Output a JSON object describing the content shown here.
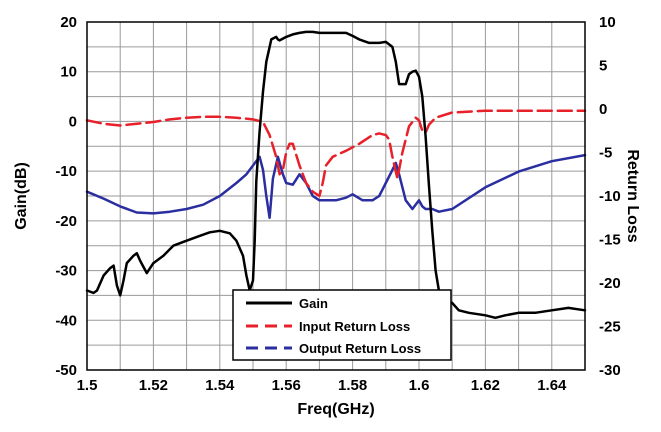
{
  "chart_data": {
    "type": "line",
    "title": "",
    "xlabel": "Freq(GHz)",
    "ylabel": "Gain(dB)",
    "ylabel_right": "Return Loss",
    "xlim": [
      1.5,
      1.65
    ],
    "ylim": [
      -50,
      20
    ],
    "ylim_right": [
      -30,
      10
    ],
    "x_ticks": [
      "1.5",
      "1.52",
      "1.54",
      "1.56",
      "1.58",
      "1.6",
      "1.62",
      "1.64"
    ],
    "y_ticks": [
      "20",
      "10",
      "0",
      "-10",
      "-20",
      "-30",
      "-40",
      "-50"
    ],
    "y_ticks_right": [
      "10",
      "5",
      "0",
      "-5",
      "-10",
      "-15",
      "-20",
      "-25",
      "-30"
    ],
    "grid": true,
    "legend_position": "bottom-center",
    "series": [
      {
        "name": "Gain",
        "axis": "left",
        "color": "#000000",
        "dash": "solid",
        "x": [
          1.5,
          1.502,
          1.503,
          1.505,
          1.507,
          1.508,
          1.509,
          1.51,
          1.511,
          1.512,
          1.514,
          1.515,
          1.516,
          1.518,
          1.52,
          1.523,
          1.526,
          1.53,
          1.534,
          1.537,
          1.54,
          1.543,
          1.545,
          1.547,
          1.548,
          1.549,
          1.55,
          1.5505,
          1.551,
          1.552,
          1.553,
          1.554,
          1.5555,
          1.557,
          1.5575,
          1.558,
          1.56,
          1.562,
          1.564,
          1.566,
          1.568,
          1.57,
          1.575,
          1.578,
          1.58,
          1.582,
          1.585,
          1.588,
          1.59,
          1.592,
          1.593,
          1.594,
          1.596,
          1.597,
          1.598,
          1.599,
          1.6,
          1.601,
          1.602,
          1.603,
          1.604,
          1.605,
          1.606,
          1.607,
          1.608,
          1.61,
          1.612,
          1.615,
          1.62,
          1.623,
          1.626,
          1.63,
          1.635,
          1.64,
          1.645,
          1.65
        ],
        "y": [
          -34,
          -34.5,
          -34,
          -31,
          -29.5,
          -29,
          -33,
          -35,
          -32,
          -28.5,
          -27,
          -26.5,
          -28,
          -30.5,
          -28.5,
          -27,
          -25,
          -24,
          -23,
          -22.3,
          -22,
          -22.5,
          -24,
          -27,
          -31,
          -34,
          -32,
          -24,
          -12,
          -2,
          6,
          12,
          16.5,
          17,
          16.5,
          16.3,
          17,
          17.5,
          17.8,
          18,
          18,
          17.8,
          17.8,
          17.8,
          17.2,
          16.5,
          15.8,
          15.8,
          16,
          15,
          12,
          7.5,
          7.5,
          9.5,
          10,
          10.2,
          9,
          5,
          -3,
          -13,
          -22,
          -30,
          -34,
          -35.5,
          -36,
          -36.5,
          -38,
          -38.5,
          -39,
          -39.5,
          -39,
          -38.5,
          -38.5,
          -38,
          -37.5,
          -38
        ]
      },
      {
        "name": "Input Return Loss",
        "axis": "right",
        "color": "#e8202a",
        "dash": "dashed",
        "x": [
          1.5,
          1.505,
          1.51,
          1.515,
          1.52,
          1.525,
          1.53,
          1.535,
          1.54,
          1.545,
          1.55,
          1.553,
          1.555,
          1.557,
          1.558,
          1.559,
          1.5595,
          1.56,
          1.561,
          1.562,
          1.564,
          1.566,
          1.568,
          1.57,
          1.571,
          1.572,
          1.574,
          1.578,
          1.582,
          1.586,
          1.588,
          1.59,
          1.591,
          1.592,
          1.5935,
          1.595,
          1.597,
          1.599,
          1.6,
          1.601,
          1.602,
          1.603,
          1.605,
          1.61,
          1.62,
          1.63,
          1.64,
          1.65
        ],
        "y": [
          -1.3,
          -1.7,
          -1.9,
          -1.7,
          -1.5,
          -1.2,
          -1,
          -0.9,
          -0.9,
          -1,
          -1.2,
          -1.5,
          -3,
          -5.5,
          -7.5,
          -7,
          -6,
          -5,
          -4,
          -4,
          -6.5,
          -8.5,
          -9.5,
          -10,
          -8.5,
          -6.5,
          -5.5,
          -4.8,
          -4,
          -3,
          -2.8,
          -3,
          -3.5,
          -5.5,
          -8,
          -5,
          -2,
          -1,
          -1.3,
          -2.5,
          -2.7,
          -1.8,
          -1,
          -0.4,
          -0.2,
          -0.2,
          -0.2,
          -0.2
        ]
      },
      {
        "name": "Output Return Loss",
        "axis": "right",
        "color": "#2a2ea0",
        "dash": "solid",
        "x": [
          1.5,
          1.505,
          1.51,
          1.515,
          1.52,
          1.525,
          1.53,
          1.535,
          1.54,
          1.545,
          1.548,
          1.55,
          1.552,
          1.553,
          1.554,
          1.555,
          1.556,
          1.5575,
          1.559,
          1.56,
          1.562,
          1.564,
          1.566,
          1.568,
          1.57,
          1.572,
          1.575,
          1.578,
          1.58,
          1.583,
          1.586,
          1.588,
          1.59,
          1.592,
          1.593,
          1.594,
          1.596,
          1.598,
          1.6,
          1.601,
          1.602,
          1.604,
          1.606,
          1.61,
          1.62,
          1.63,
          1.64,
          1.65
        ],
        "y": [
          -9.5,
          -10.3,
          -11.2,
          -11.9,
          -12,
          -11.8,
          -11.5,
          -11,
          -10,
          -8.5,
          -7.5,
          -6.5,
          -5.5,
          -7,
          -10,
          -12.5,
          -8,
          -5.5,
          -7.5,
          -8.5,
          -8.7,
          -7.5,
          -8.5,
          -10,
          -10.5,
          -10.5,
          -10.5,
          -10.2,
          -9.8,
          -10.5,
          -10.5,
          -10,
          -8.5,
          -7,
          -6.2,
          -7.5,
          -10.5,
          -11.5,
          -10.5,
          -11.2,
          -11.5,
          -11.5,
          -11.8,
          -11.5,
          -9,
          -7.2,
          -6,
          -5.3
        ]
      }
    ]
  }
}
